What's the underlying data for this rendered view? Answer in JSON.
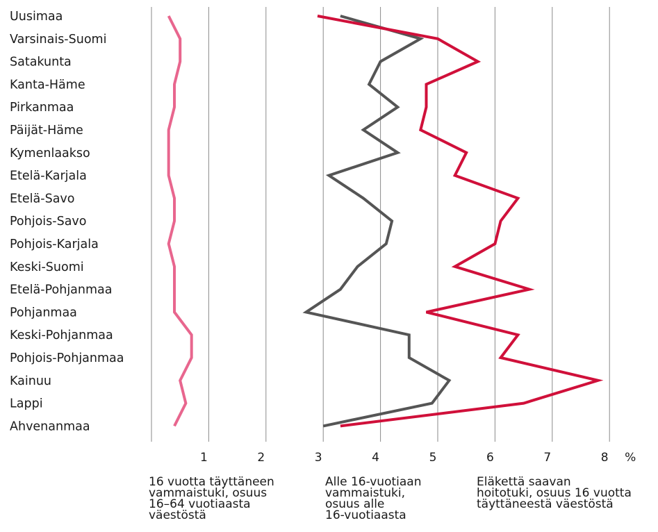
{
  "chart_data": {
    "type": "line",
    "orientation": "horizontal",
    "categories": [
      "Uusimaa",
      "Varsinais-Suomi",
      "Satakunta",
      "Kanta-Häme",
      "Pirkanmaa",
      "Päijät-Häme",
      "Kymenlaakso",
      "Etelä-Karjala",
      "Etelä-Savo",
      "Pohjois-Savo",
      "Pohjois-Karjala",
      "Keski-Suomi",
      "Etelä-Pohjanmaa",
      "Pohjanmaa",
      "Keski-Pohjanmaa",
      "Pohjois-Pohjanmaa",
      "Kainuu",
      "Lappi",
      "Ahvenanmaa"
    ],
    "x_ticks": [
      "1",
      "2",
      "3",
      "4",
      "5",
      "6",
      "7",
      "8"
    ],
    "x_unit": "%",
    "xlim": [
      0,
      8
    ],
    "grid": true,
    "series": [
      {
        "name": "16 vuotta täyttäneen\nvammaistuki, osuus\n16–64 vuotiaasta\nväestöstä",
        "color": "#e8668e",
        "values": [
          0.3,
          0.5,
          0.5,
          0.4,
          0.4,
          0.3,
          0.3,
          0.3,
          0.4,
          0.4,
          0.3,
          0.4,
          0.4,
          0.4,
          0.7,
          0.7,
          0.5,
          0.6,
          0.4
        ]
      },
      {
        "name": "Alle 16-vuotiaan\nvammaistuki,\nosuus alle\n16-vuotiaasta",
        "color": "#555555",
        "values": [
          3.3,
          4.7,
          4.0,
          3.8,
          4.3,
          3.7,
          4.3,
          3.1,
          3.7,
          4.2,
          4.1,
          3.6,
          3.3,
          2.7,
          4.5,
          4.5,
          5.2,
          4.9,
          3.0
        ]
      },
      {
        "name": "Eläkettä saavan\nhoitotuki, osuus 16 vuotta\ntäyttäneestä väestöstä",
        "color": "#d0103a",
        "values": [
          2.9,
          5.0,
          5.7,
          4.8,
          4.8,
          4.7,
          5.5,
          5.3,
          6.4,
          6.1,
          6.0,
          5.3,
          6.6,
          4.8,
          6.4,
          6.1,
          7.8,
          6.5,
          3.3
        ]
      }
    ]
  }
}
